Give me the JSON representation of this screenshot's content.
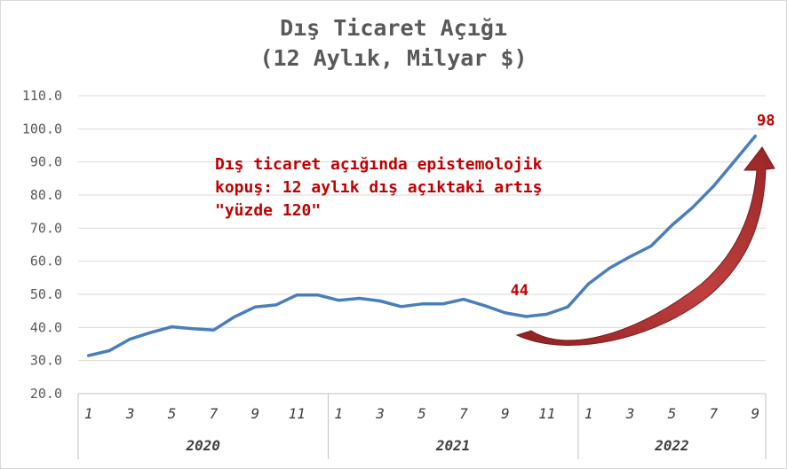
{
  "chart_data": {
    "type": "line",
    "title_line1": "Dış Ticaret Açığı",
    "title_line2": "(12 Aylık, Milyar $)",
    "ylim": [
      20,
      110
    ],
    "y_ticks": [
      "20.0",
      "30.0",
      "40.0",
      "50.0",
      "60.0",
      "70.0",
      "80.0",
      "90.0",
      "100.0",
      "110.0"
    ],
    "grid": "horizontal",
    "months": [
      1,
      2,
      3,
      4,
      5,
      6,
      7,
      8,
      9,
      10,
      11,
      12,
      1,
      2,
      3,
      4,
      5,
      6,
      7,
      8,
      9,
      10,
      11,
      12,
      1,
      2,
      3,
      4,
      5,
      6,
      7,
      8,
      9
    ],
    "x_tick_labels": [
      "1",
      "3",
      "5",
      "7",
      "9",
      "11",
      "1",
      "3",
      "5",
      "7",
      "9",
      "11",
      "1",
      "3",
      "5",
      "7",
      "9"
    ],
    "years": [
      "2020",
      "2021",
      "2022"
    ],
    "series": [
      {
        "color": "#4a7ebb",
        "values": [
          31.5,
          33.0,
          36.5,
          38.5,
          40.2,
          39.6,
          39.2,
          43.2,
          46.2,
          46.8,
          49.8,
          49.8,
          48.2,
          48.8,
          48.0,
          46.3,
          47.1,
          47.1,
          48.5,
          46.6,
          44.4,
          43.3,
          44.0,
          46.2,
          53.2,
          57.9,
          61.4,
          64.6,
          70.9,
          76.3,
          82.7,
          90.2,
          97.8
        ]
      }
    ],
    "point_labels": [
      {
        "index": 20,
        "text": "44"
      },
      {
        "index": 32,
        "text": "98"
      }
    ],
    "annotation_lines": [
      "Dış ticaret açığında epistemolojik",
      "kopuş: 12 aylık dış açıktaki artış",
      "\"yüzde 120\""
    ],
    "arrow_color": "#b03030"
  }
}
